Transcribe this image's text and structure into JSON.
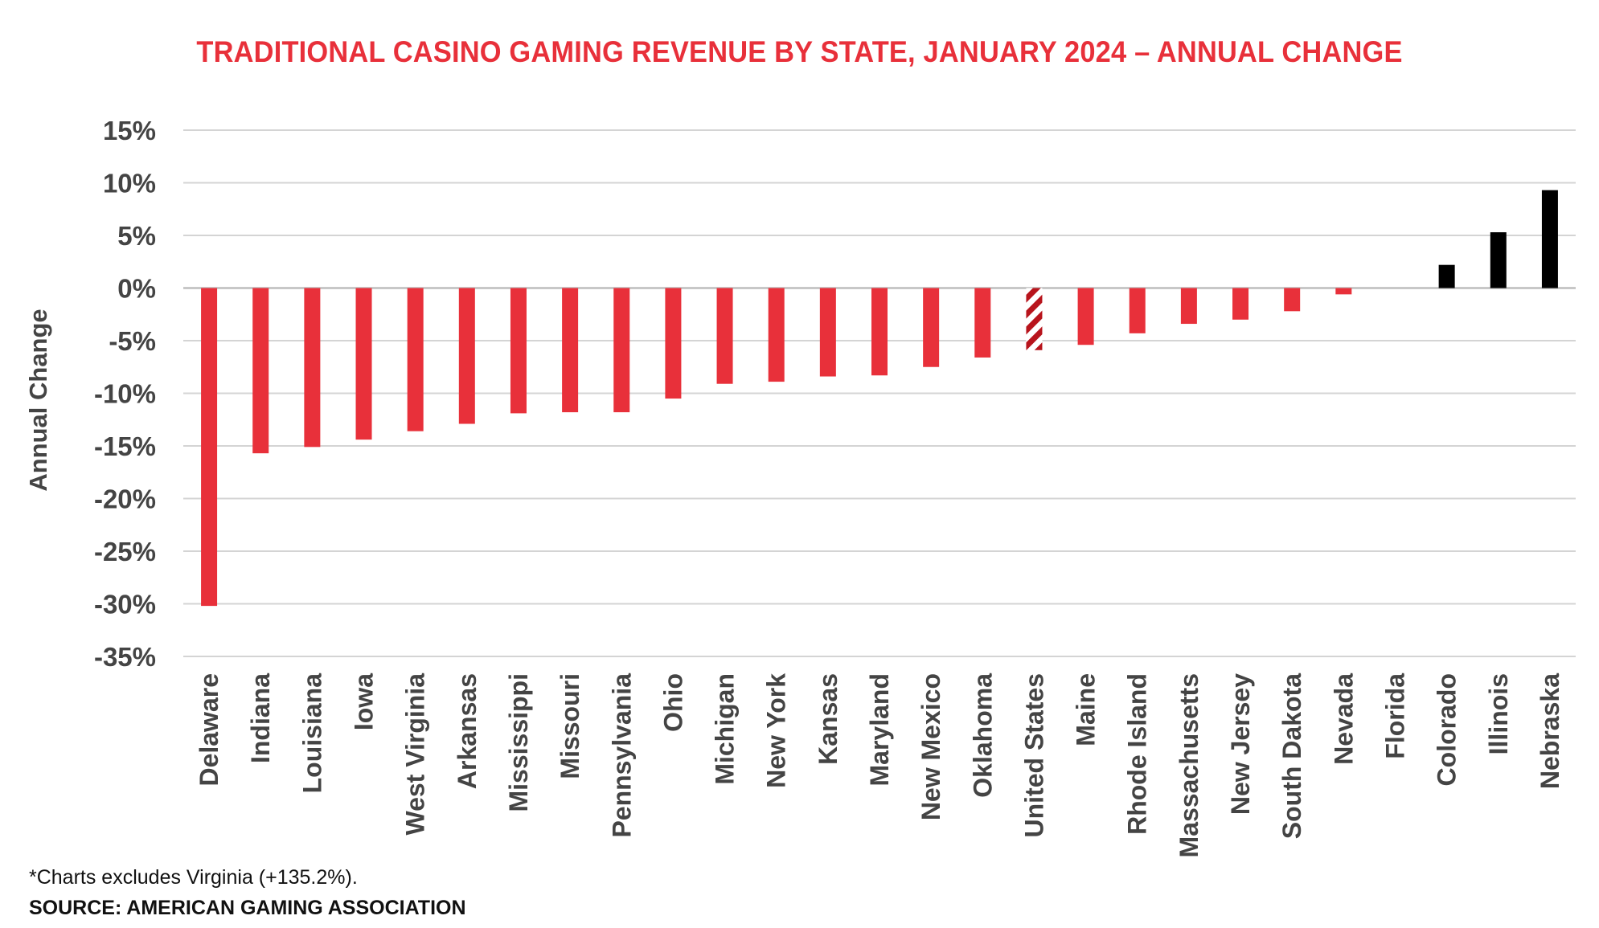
{
  "chart_data": {
    "type": "bar",
    "title": "TRADITIONAL CASINO GAMING REVENUE BY STATE, JANUARY 2024 – ANNUAL CHANGE",
    "ylabel": "Annual Change",
    "xlabel": "",
    "ylim": [
      -35,
      15
    ],
    "yticks": [
      15,
      10,
      5,
      0,
      -5,
      -10,
      -15,
      -20,
      -25,
      -30,
      -35
    ],
    "ytick_labels": [
      "15%",
      "10%",
      "5%",
      "0%",
      "-5%",
      "-10%",
      "-15%",
      "-20%",
      "-25%",
      "-30%",
      "-35%"
    ],
    "grid": true,
    "categories": [
      "Delaware",
      "Indiana",
      "Louisiana",
      "Iowa",
      "West Virginia",
      "Arkansas",
      "Mississippi",
      "Missouri",
      "Pennsylvania",
      "Ohio",
      "Michigan",
      "New York",
      "Kansas",
      "Maryland",
      "New Mexico",
      "Oklahoma",
      "United States",
      "Maine",
      "Rhode Island",
      "Massachusetts",
      "New Jersey",
      "South Dakota",
      "Nevada",
      "Florida",
      "Colorado",
      "Illinois",
      "Nebraska"
    ],
    "values": [
      -30.2,
      -15.7,
      -15.1,
      -14.4,
      -13.6,
      -12.9,
      -11.9,
      -11.8,
      -11.8,
      -10.5,
      -9.1,
      -8.9,
      -8.4,
      -8.3,
      -7.5,
      -6.6,
      -5.9,
      -5.4,
      -4.3,
      -3.4,
      -3.0,
      -2.2,
      -0.6,
      0.0,
      2.2,
      5.3,
      9.3
    ],
    "colors": {
      "negative": "#e8303a",
      "positive": "#000000",
      "highlight": "United States",
      "highlight_pattern": "red-white-hatched"
    }
  },
  "footnote": "*Charts excludes Virginia (+135.2%).",
  "source": "SOURCE: AMERICAN GAMING ASSOCIATION"
}
